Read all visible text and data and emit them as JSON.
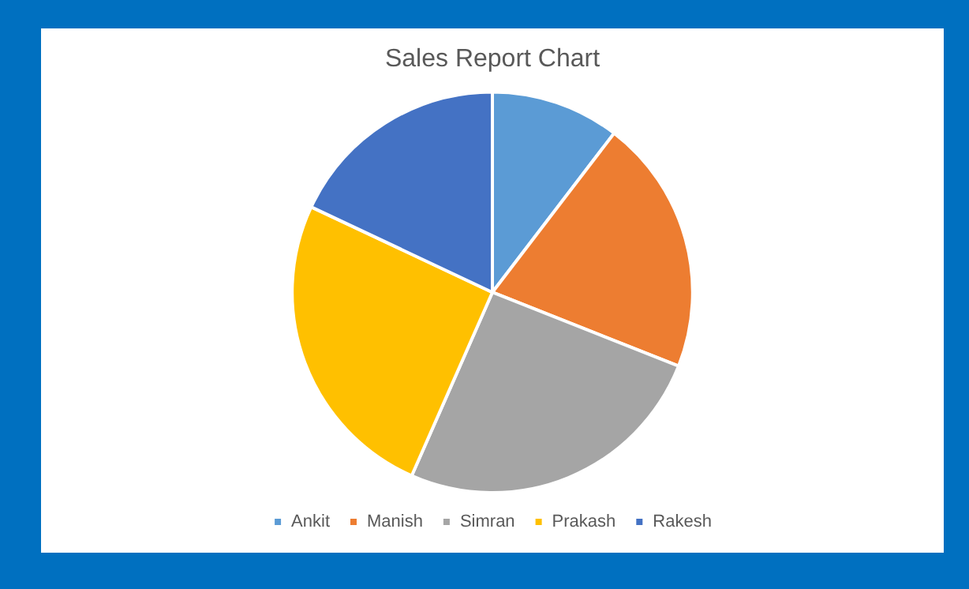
{
  "chart_data": {
    "type": "pie",
    "title": "Sales Report Chart",
    "categories": [
      "Ankit",
      "Manish",
      "Simran",
      "Prakash",
      "Rakesh"
    ],
    "values": [
      10.4,
      20.6,
      25.6,
      25.4,
      18.0
    ],
    "colors": [
      "#5b9bd5",
      "#ed7d31",
      "#a5a5a5",
      "#ffc000",
      "#4472c4"
    ],
    "legend": "bottom"
  }
}
